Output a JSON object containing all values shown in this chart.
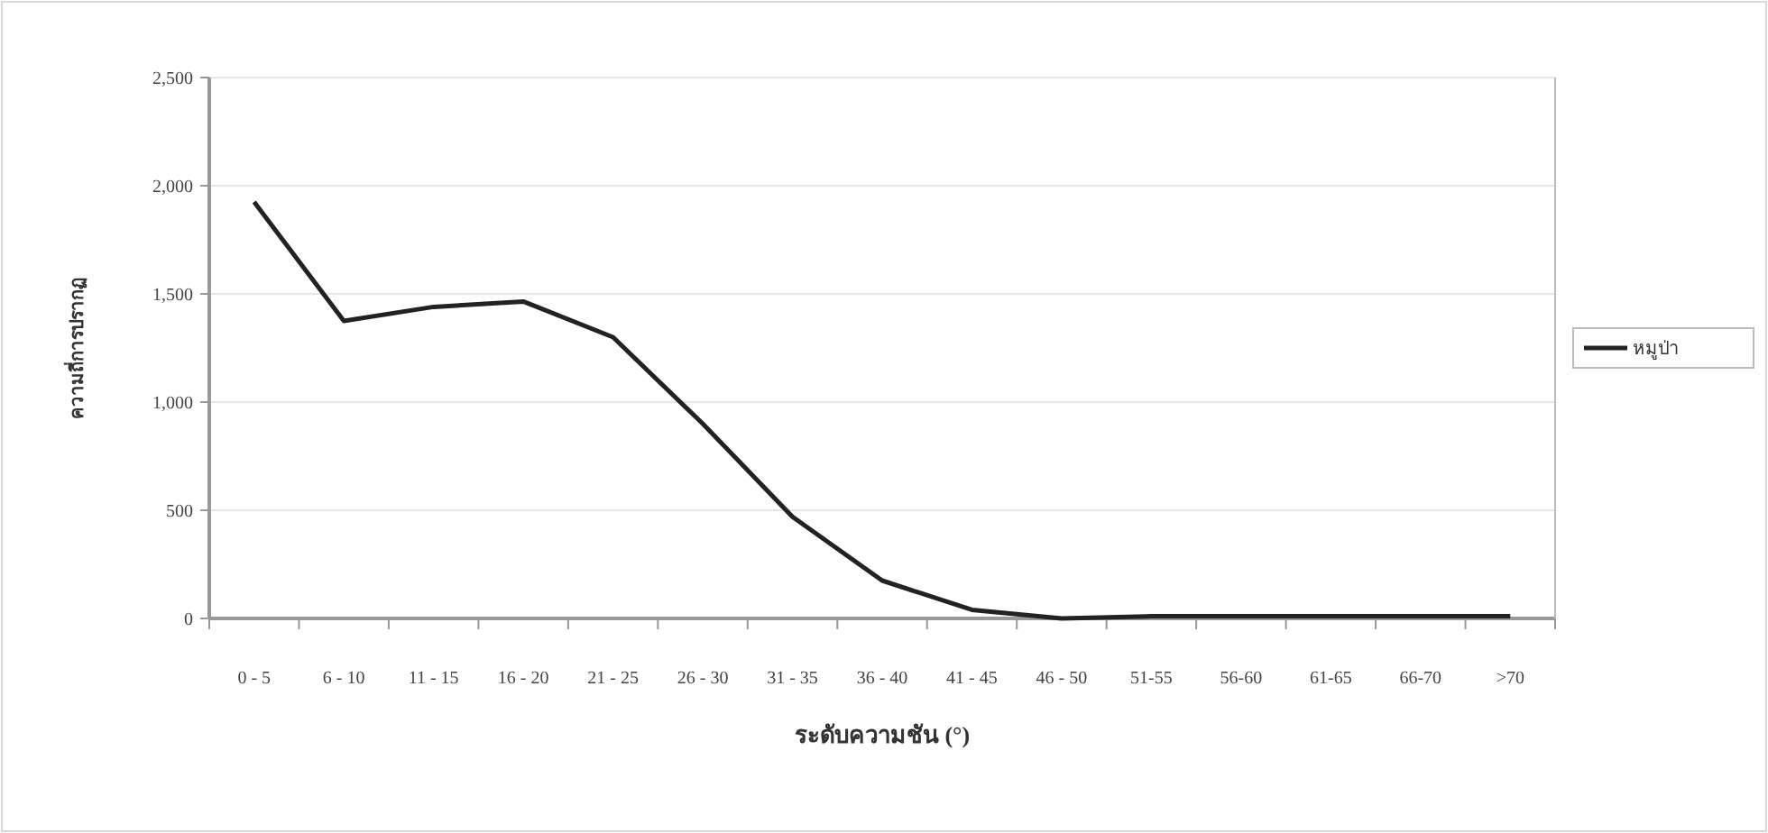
{
  "chart_data": {
    "type": "line",
    "xlabel": "ระดับความชัน (°)",
    "ylabel": "ความถี่การปรากฏ",
    "categories": [
      "0 - 5",
      "6 - 10",
      "11 - 15",
      "16 - 20",
      "21 - 25",
      "26 - 30",
      "31 - 35",
      "36 - 40",
      "41 - 45",
      "46 - 50",
      "51-55",
      "56-60",
      "61-65",
      "66-70",
      ">70"
    ],
    "series": [
      {
        "name": "หมูป่า",
        "color": "#222222",
        "values": [
          1925,
          1375,
          1440,
          1465,
          1300,
          900,
          470,
          175,
          40,
          0,
          10,
          10,
          10,
          10,
          10
        ]
      }
    ],
    "ylim": [
      0,
      2500
    ],
    "yticks": [
      {
        "value": 0,
        "label": "0"
      },
      {
        "value": 500,
        "label": "500"
      },
      {
        "value": 1000,
        "label": "1,000"
      },
      {
        "value": 1500,
        "label": "1,500"
      },
      {
        "value": 2000,
        "label": "2,000"
      },
      {
        "value": 2500,
        "label": "2,500"
      }
    ],
    "grid": "y",
    "legend": "right",
    "marker": "none",
    "line_style": "solid"
  }
}
